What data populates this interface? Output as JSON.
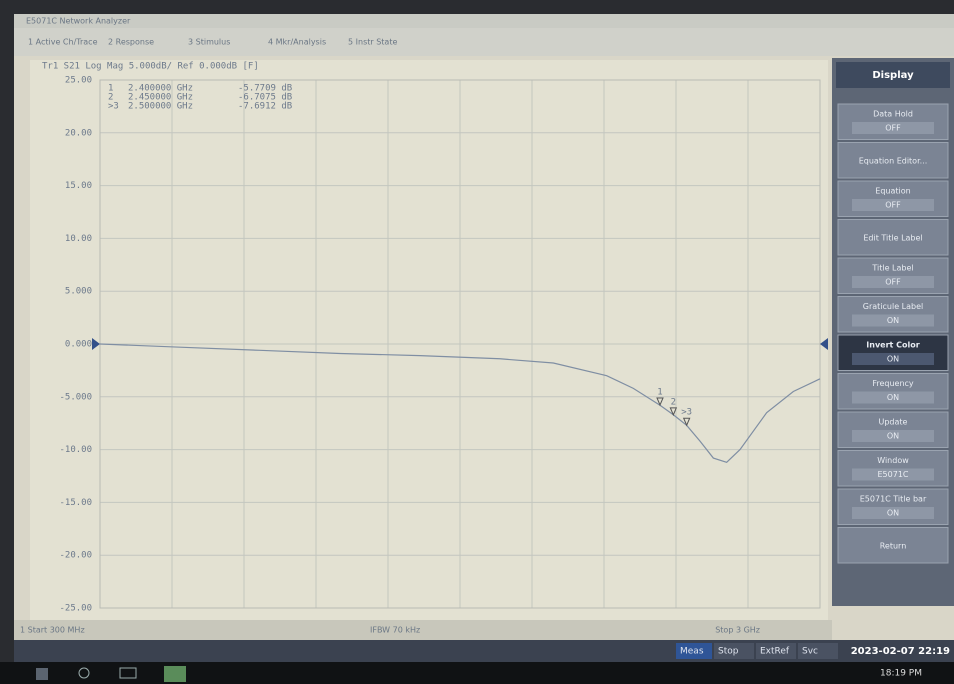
{
  "window": {
    "title": "E5071C Network Analyzer",
    "menu": [
      "1 Active Ch/Trace",
      "2 Response",
      "3 Stimulus",
      "4 Mkr/Analysis",
      "5 Instr State"
    ]
  },
  "plot": {
    "header": "Tr1 S21 Log Mag 5.000dB/ Ref 0.000dB [F]",
    "ylim": [
      -25,
      25
    ],
    "yticks": [
      {
        "value": 25,
        "label": "25.00"
      },
      {
        "value": 20,
        "label": "20.00"
      },
      {
        "value": 15,
        "label": "15.00"
      },
      {
        "value": 10,
        "label": "10.00"
      },
      {
        "value": 5,
        "label": "5.000"
      },
      {
        "value": 0,
        "label": "0.000"
      },
      {
        "value": -5,
        "label": "-5.000"
      },
      {
        "value": -10,
        "label": "-10.00"
      },
      {
        "value": -15,
        "label": "-15.00"
      },
      {
        "value": -20,
        "label": "-20.00"
      },
      {
        "value": -25,
        "label": "-25.00"
      }
    ],
    "xlim": [
      0.3,
      3
    ],
    "trace": {
      "color": "#7f8ea3",
      "x": [
        0.3,
        0.6,
        0.9,
        1.2,
        1.5,
        1.8,
        2.0,
        2.2,
        2.3,
        2.4,
        2.45,
        2.5,
        2.55,
        2.6,
        2.65,
        2.7,
        2.8,
        2.9,
        3.0
      ],
      "y": [
        0,
        -0.3,
        -0.6,
        -0.9,
        -1.1,
        -1.4,
        -1.8,
        -3.0,
        -4.2,
        -5.8,
        -6.7,
        -7.7,
        -9.2,
        -10.8,
        -11.2,
        -10.0,
        -6.5,
        -4.5,
        -3.3
      ]
    },
    "markers": [
      {
        "label": "1",
        "frequency": {
          "value": 2.4,
          "label": "2.400000 GHz"
        },
        "value": {
          "value": -5.7709,
          "label": "-5.7709 dB"
        }
      },
      {
        "label": "2",
        "frequency": {
          "value": 2.45,
          "label": "2.450000 GHz"
        },
        "value": {
          "value": -6.7075,
          "label": "-6.7075 dB"
        }
      },
      {
        "label": ">3",
        "frequency": {
          "value": 2.5,
          "label": "2.500000 GHz"
        },
        "value": {
          "value": -7.6912,
          "label": "-7.6912 dB"
        }
      }
    ],
    "start": "1 Start 300 MHz",
    "ifbw": "IFBW 70 kHz",
    "stop": "Stop 3 GHz"
  },
  "softkeys": {
    "title": "Display",
    "items": [
      {
        "label": "Data Hold",
        "state": "OFF"
      },
      {
        "label": "Equation Editor..."
      },
      {
        "label": "Equation",
        "state": "OFF"
      },
      {
        "label": "Edit Title Label"
      },
      {
        "label": "Title Label",
        "state": "OFF"
      },
      {
        "label": "Graticule Label",
        "state": "ON"
      },
      {
        "label": "Invert Color",
        "state": "ON"
      },
      {
        "label": "Frequency",
        "state": "ON"
      },
      {
        "label": "Update",
        "state": "ON"
      },
      {
        "label": "Window",
        "state": "E5071C"
      },
      {
        "label": "E5071C Title bar",
        "state": "ON"
      },
      {
        "label": "Return"
      }
    ]
  },
  "status": {
    "items": [
      "Meas",
      "Stop",
      "ExtRef",
      "Svc"
    ],
    "datetime": "2023-02-07 22:19"
  },
  "taskbar": {
    "clock": "18:19 PM"
  }
}
